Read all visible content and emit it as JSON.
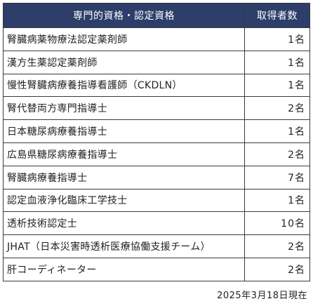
{
  "table": {
    "headers": {
      "qualification": "専門的資格・認定資格",
      "count": "取得者数"
    },
    "rows": [
      {
        "name": "腎臓病薬物療法認定薬剤師",
        "count": "1名"
      },
      {
        "name": "漢方生薬認定薬剤師",
        "count": "1名"
      },
      {
        "name": "慢性腎臓病療養指導看護師（CKDLN）",
        "count": "1名"
      },
      {
        "name": "腎代替両方専門指導士",
        "count": "2名"
      },
      {
        "name": "日本糖尿病療養指導士",
        "count": "1名"
      },
      {
        "name": "広島県糖尿病療養指導士",
        "count": "2名"
      },
      {
        "name": "腎臓病療養指導士",
        "count": "7名"
      },
      {
        "name": "認定血液浄化臨床工学技士",
        "count": "1名"
      },
      {
        "name": "透析技術認定士",
        "count": "10名"
      },
      {
        "name": "JHAT（日本災害時透析医療協働支援チーム）",
        "count": "2名"
      },
      {
        "name": "肝コーディネーター",
        "count": "2名"
      }
    ]
  },
  "footer": {
    "as_of": "2025年3月18日現在"
  },
  "colors": {
    "header_background": "#2c3e69",
    "header_text": "#ffffff",
    "border": "#3a3a3a"
  }
}
